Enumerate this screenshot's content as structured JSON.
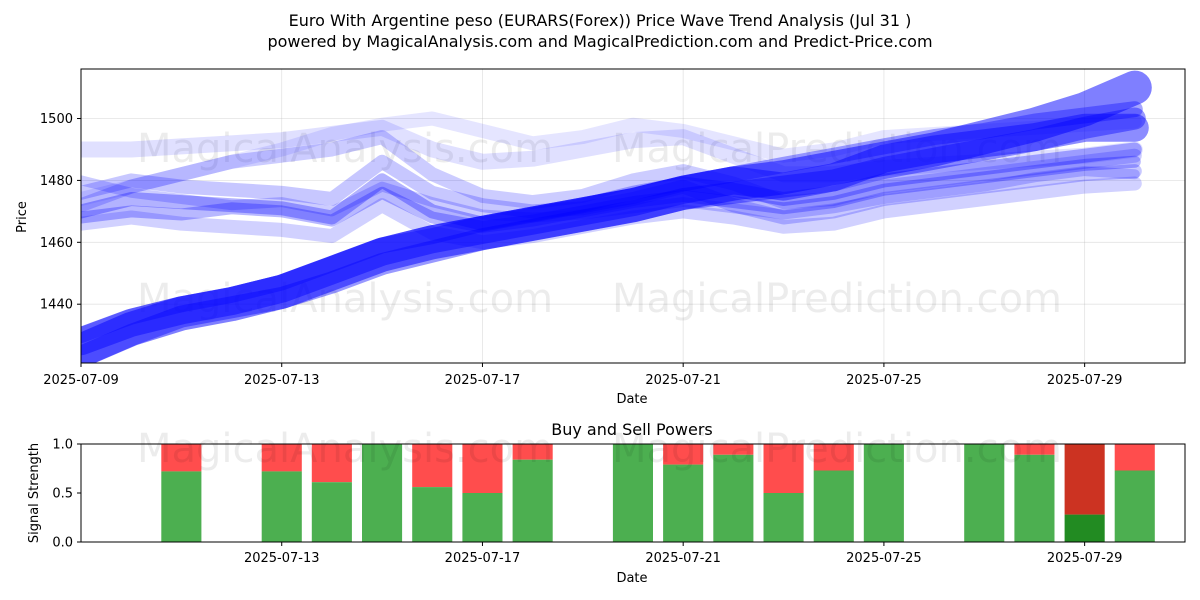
{
  "title_line1": "Euro With Argentine peso (EURARS(Forex)) Price Wave Trend Analysis (Jul 31 )",
  "title_line2": "powered by MagicalAnalysis.com and MagicalPrediction.com and Predict-Price.com",
  "watermarks": {
    "top_left": "MagicalAnalysis.com",
    "top_right": "MagicalPrediction.com",
    "mid_left": "MagicalAnalysis.com",
    "mid_right": "MagicalPrediction.com",
    "low_left": "MagicalAnalysis.com",
    "low_right": "MagicalPrediction.com"
  },
  "colors": {
    "wave": "#0000ff",
    "buy": "#4caf50",
    "sell": "#ff4d4d",
    "buy_dark": "#228b22",
    "sell_dark": "#cc3322"
  },
  "chart_data": [
    {
      "type": "line",
      "title": "",
      "xlabel": "Date",
      "ylabel": "Price",
      "xlim": [
        "2025-07-09",
        "2025-07-31"
      ],
      "ylim": [
        1421,
        1516
      ],
      "x_ticks": [
        "2025-07-09",
        "2025-07-13",
        "2025-07-17",
        "2025-07-21",
        "2025-07-25",
        "2025-07-29"
      ],
      "y_ticks": [
        1440,
        1460,
        1480,
        1500
      ],
      "grid": true,
      "x": [
        "2025-07-09",
        "2025-07-10",
        "2025-07-11",
        "2025-07-12",
        "2025-07-13",
        "2025-07-14",
        "2025-07-15",
        "2025-07-16",
        "2025-07-17",
        "2025-07-18",
        "2025-07-19",
        "2025-07-20",
        "2025-07-21",
        "2025-07-22",
        "2025-07-23",
        "2025-07-24",
        "2025-07-25",
        "2025-07-26",
        "2025-07-27",
        "2025-07-28",
        "2025-07-29",
        "2025-07-30"
      ],
      "series": [
        {
          "values": [
            1425,
            1432,
            1437,
            1440,
            1444,
            1450,
            1456,
            1460,
            1463,
            1466,
            1469,
            1472,
            1476,
            1479,
            1481,
            1484,
            1487,
            1490,
            1494,
            1498,
            1503,
            1510
          ],
          "weight": 34,
          "opacity": 0.5
        },
        {
          "values": [
            1428,
            1434,
            1438,
            1441,
            1445,
            1451,
            1457,
            1461,
            1464,
            1467,
            1470,
            1473,
            1477,
            1480,
            1478,
            1481,
            1487,
            1490,
            1492,
            1494,
            1497,
            1497
          ],
          "weight": 28,
          "opacity": 0.45
        },
        {
          "values": [
            1423,
            1430,
            1436,
            1439,
            1442,
            1447,
            1453,
            1457,
            1461,
            1464,
            1467,
            1470,
            1474,
            1476,
            1478,
            1480,
            1484,
            1487,
            1490,
            1493,
            1497,
            1500
          ],
          "weight": 22,
          "opacity": 0.4
        },
        {
          "values": [
            1430,
            1436,
            1440,
            1443,
            1447,
            1453,
            1459,
            1462,
            1466,
            1469,
            1472,
            1475,
            1479,
            1482,
            1485,
            1488,
            1491,
            1494,
            1496,
            1499,
            1501,
            1503
          ],
          "weight": 16,
          "opacity": 0.35
        },
        {
          "values": [
            1470,
            1474,
            1473,
            1472,
            1471,
            1468,
            1480,
            1470,
            1466,
            1469,
            1472,
            1476,
            1479,
            1477,
            1474,
            1476,
            1480,
            1482,
            1484,
            1486,
            1488,
            1490
          ],
          "weight": 14,
          "opacity": 0.3
        },
        {
          "values": [
            1468,
            1470,
            1469,
            1471,
            1470,
            1467,
            1476,
            1468,
            1465,
            1467,
            1470,
            1473,
            1475,
            1473,
            1471,
            1473,
            1477,
            1479,
            1481,
            1483,
            1485,
            1486
          ],
          "weight": 12,
          "opacity": 0.28
        },
        {
          "values": [
            1476,
            1480,
            1478,
            1477,
            1476,
            1474,
            1486,
            1476,
            1472,
            1470,
            1471,
            1474,
            1478,
            1472,
            1468,
            1470,
            1474,
            1476,
            1478,
            1480,
            1482,
            1483
          ],
          "weight": 14,
          "opacity": 0.22
        },
        {
          "values": [
            1472,
            1478,
            1482,
            1486,
            1488,
            1490,
            1494,
            1482,
            1475,
            1473,
            1475,
            1480,
            1483,
            1479,
            1473,
            1474,
            1478,
            1480,
            1482,
            1484,
            1486,
            1488
          ],
          "weight": 14,
          "opacity": 0.2
        },
        {
          "values": [
            1466,
            1468,
            1466,
            1465,
            1464,
            1462,
            1472,
            1463,
            1460,
            1462,
            1465,
            1468,
            1470,
            1468,
            1465,
            1466,
            1470,
            1472,
            1474,
            1476,
            1478,
            1479
          ],
          "weight": 14,
          "opacity": 0.18
        },
        {
          "values": [
            1490,
            1490,
            1491,
            1492,
            1493,
            1495,
            1497,
            1490,
            1486,
            1487,
            1490,
            1493,
            1494,
            1488,
            1482,
            1482,
            1484,
            1485,
            1486,
            1487,
            1488,
            1490
          ],
          "weight": 16,
          "opacity": 0.12
        },
        {
          "values": [
            1474,
            1478,
            1482,
            1486,
            1490,
            1495,
            1498,
            1500,
            1496,
            1492,
            1494,
            1498,
            1496,
            1492,
            1488,
            1490,
            1494,
            1495,
            1496,
            1497,
            1498,
            1499
          ],
          "weight": 14,
          "opacity": 0.1
        },
        {
          "values": [
            1480,
            1476,
            1474,
            1472,
            1473,
            1470,
            1478,
            1473,
            1469,
            1468,
            1469,
            1471,
            1473,
            1471,
            1469,
            1471,
            1474,
            1476,
            1478,
            1481,
            1483,
            1482
          ],
          "weight": 10,
          "opacity": 0.2
        }
      ]
    },
    {
      "type": "bar",
      "title": "Buy and Sell Powers",
      "xlabel": "Date",
      "ylabel": "Signal Strength",
      "xlim": [
        "2025-07-09",
        "2025-07-31"
      ],
      "ylim": [
        0,
        1.0
      ],
      "x_ticks": [
        "2025-07-13",
        "2025-07-17",
        "2025-07-21",
        "2025-07-25",
        "2025-07-29"
      ],
      "y_ticks": [
        "0.0",
        "0.5",
        "1.0"
      ],
      "bars": [
        {
          "date": "2025-07-11",
          "buy": 0.72
        },
        {
          "date": "2025-07-13",
          "buy": 0.72
        },
        {
          "date": "2025-07-14",
          "buy": 0.61
        },
        {
          "date": "2025-07-15",
          "buy": 1.0
        },
        {
          "date": "2025-07-16",
          "buy": 0.56
        },
        {
          "date": "2025-07-17",
          "buy": 0.5
        },
        {
          "date": "2025-07-18",
          "buy": 0.84
        },
        {
          "date": "2025-07-20",
          "buy": 1.0
        },
        {
          "date": "2025-07-21",
          "buy": 0.79
        },
        {
          "date": "2025-07-22",
          "buy": 0.89
        },
        {
          "date": "2025-07-23",
          "buy": 0.5
        },
        {
          "date": "2025-07-24",
          "buy": 0.73
        },
        {
          "date": "2025-07-25",
          "buy": 1.0
        },
        {
          "date": "2025-07-27",
          "buy": 1.0
        },
        {
          "date": "2025-07-28",
          "buy": 0.89
        },
        {
          "date": "2025-07-29",
          "buy": 0.28,
          "dark": true
        },
        {
          "date": "2025-07-30",
          "buy": 0.73
        }
      ]
    }
  ]
}
